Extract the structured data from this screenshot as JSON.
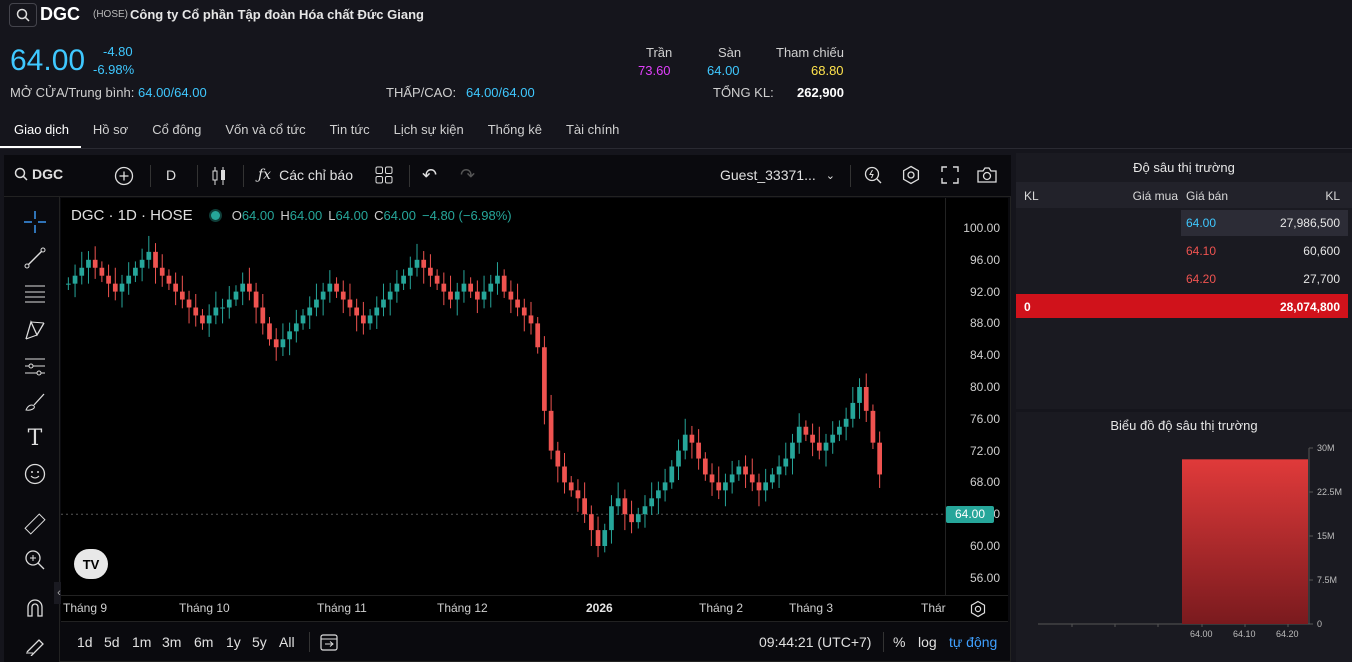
{
  "header": {
    "ticker": "DGC",
    "exchange": "(HOSE)",
    "company": "Công ty Cổ phần Tập đoàn Hóa chất Đức Giang",
    "price": "64.00",
    "change": "-4.80",
    "change_pct": "-6.98%",
    "open_avg_label": "MỞ CỬA/Trung bình:",
    "open_avg_value": "64.00/64.00",
    "low_high_label": "THẤP/CAO:",
    "low_high_value": "64.00/64.00",
    "ceiling_label": "Trần",
    "ceiling_value": "73.60",
    "floor_label": "Sàn",
    "floor_value": "64.00",
    "ref_label": "Tham chiếu",
    "ref_value": "68.80",
    "total_vol_label": "TỔNG KL:",
    "total_vol_value": "262,900"
  },
  "tabs": [
    {
      "label": "Giao dịch",
      "active": true
    },
    {
      "label": "Hồ sơ"
    },
    {
      "label": "Cổ đông"
    },
    {
      "label": "Vốn và cổ tức"
    },
    {
      "label": "Tin tức"
    },
    {
      "label": "Lịch sự kiện"
    },
    {
      "label": "Thống kê"
    },
    {
      "label": "Tài chính"
    }
  ],
  "toolbar": {
    "symbol": "DGC",
    "interval": "D",
    "indicators_label": "Các chỉ báo",
    "user_label": "Guest_33371..."
  },
  "legend": {
    "title": "DGC · 1D · HOSE",
    "o_label": "O",
    "o_value": "64.00",
    "h_label": "H",
    "h_value": "64.00",
    "l_label": "L",
    "l_value": "64.00",
    "c_label": "C",
    "c_value": "64.00",
    "change": "−4.80 (−6.98%)"
  },
  "price_axis": [
    "100.00",
    "96.00",
    "92.00",
    "88.00",
    "84.00",
    "80.00",
    "76.00",
    "72.00",
    "68.00",
    "64.00",
    "60.00",
    "56.00"
  ],
  "current_price_tag": "64.00",
  "time_axis": [
    "Tháng 9",
    "Tháng 10",
    "Tháng 11",
    "Tháng 12",
    "2026",
    "Tháng 2",
    "Tháng 3",
    "Thár"
  ],
  "bottom_bar": {
    "ranges": [
      "1d",
      "5d",
      "1m",
      "3m",
      "6m",
      "1y",
      "5y",
      "All"
    ],
    "time": "09:44:21 (UTC+7)",
    "pct": "%",
    "log": "log",
    "auto": "tự động"
  },
  "depth": {
    "title": "Độ sâu thị trường",
    "headers": {
      "kl_left": "KL",
      "bid": "Giá mua",
      "ask": "Giá bán",
      "kl_right": "KL"
    },
    "rows": [
      {
        "ask": "64.00",
        "vol": "27,986,500"
      },
      {
        "ask": "64.10",
        "vol": "60,600"
      },
      {
        "ask": "64.20",
        "vol": "27,700"
      }
    ],
    "total_left": "0",
    "total_right": "28,074,800"
  },
  "depth_chart": {
    "title": "Biểu đồ độ sâu thị trường",
    "y_labels": [
      "30M",
      "22.5M",
      "15M",
      "7.5M",
      "0"
    ],
    "x_labels": [
      "64.00",
      "64.10",
      "64.20"
    ]
  },
  "colors": {
    "up": "#26a69a",
    "down": "#ef5350",
    "accent": "#3fc8ff",
    "depth_total": "#d0121b"
  }
}
